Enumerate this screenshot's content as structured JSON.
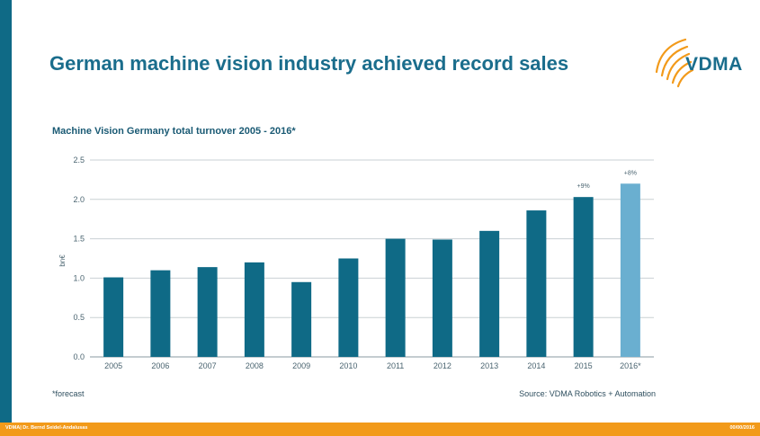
{
  "slide": {
    "title": "German machine vision industry achieved record sales",
    "logo_text": "VDMA",
    "footnote": "*forecast",
    "source": "Source: VDMA Robotics + Automation",
    "footer_left": "VDMA| Dr. Bernd Seidel-Andalusas",
    "footer_right": "00/00/2016"
  },
  "colors": {
    "brand_blue": "#1a6d8c",
    "bar": "#0f6a86",
    "bar_forecast": "#6aafd0",
    "orange": "#f29a1a"
  },
  "chart_data": {
    "type": "bar",
    "title": "Machine Vision Germany total turnover 2005 - 2016*",
    "ylabel": "bn€",
    "xlabel": "",
    "ylim": [
      0,
      2.5
    ],
    "yticks": [
      "0.0",
      "0.5",
      "1.0",
      "1.5",
      "2.0",
      "2.5"
    ],
    "grid": true,
    "categories": [
      "2005",
      "2006",
      "2007",
      "2008",
      "2009",
      "2010",
      "2011",
      "2012",
      "2013",
      "2014",
      "2015",
      "2016*"
    ],
    "values": [
      1.01,
      1.1,
      1.14,
      1.2,
      0.95,
      1.25,
      1.5,
      1.49,
      1.6,
      1.86,
      2.03,
      2.2
    ],
    "forecast": [
      false,
      false,
      false,
      false,
      false,
      false,
      false,
      false,
      false,
      false,
      false,
      true
    ],
    "annotations": [
      {
        "category": "2015",
        "text": "+9%"
      },
      {
        "category": "2016*",
        "text": "+8%"
      }
    ]
  }
}
